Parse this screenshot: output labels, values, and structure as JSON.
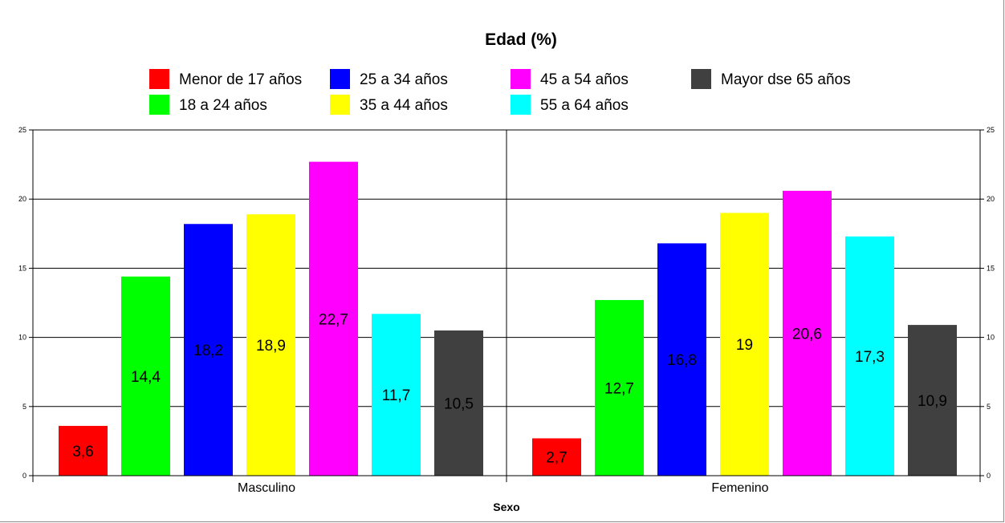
{
  "chart_data": {
    "type": "bar",
    "title": "Edad (%)",
    "xlabel": "Sexo",
    "ylabel": "",
    "ylim": [
      0,
      25
    ],
    "yticks": [
      "0",
      "5",
      "10",
      "15",
      "20",
      "25"
    ],
    "categories": [
      "Masculino",
      "Femenino"
    ],
    "grid": true,
    "secondary_axis": true,
    "legend_position": "top",
    "series": [
      {
        "name": "Menor de 17 años",
        "color": "#ff0000",
        "values": [
          3.6,
          2.7
        ],
        "labels": [
          "3,6",
          "2,7"
        ]
      },
      {
        "name": "18 a 24 años",
        "color": "#00ff00",
        "values": [
          14.4,
          12.7
        ],
        "labels": [
          "14,4",
          "12,7"
        ]
      },
      {
        "name": "25 a 34 años",
        "color": "#0000ff",
        "values": [
          18.2,
          16.8
        ],
        "labels": [
          "18,2",
          "16,8"
        ]
      },
      {
        "name": "35 a 44 años",
        "color": "#ffff00",
        "values": [
          18.9,
          19
        ],
        "labels": [
          "18,9",
          "19"
        ]
      },
      {
        "name": "45 a 54 años",
        "color": "#ff00ff",
        "values": [
          22.7,
          20.6
        ],
        "labels": [
          "22,7",
          "20,6"
        ]
      },
      {
        "name": "55 a 64 años",
        "color": "#00ffff",
        "values": [
          11.7,
          17.3
        ],
        "labels": [
          "11,7",
          "17,3"
        ]
      },
      {
        "name": "Mayor dse 65 años",
        "color": "#404040",
        "values": [
          10.5,
          10.9
        ],
        "labels": [
          "10,5",
          "10,9"
        ]
      }
    ]
  }
}
